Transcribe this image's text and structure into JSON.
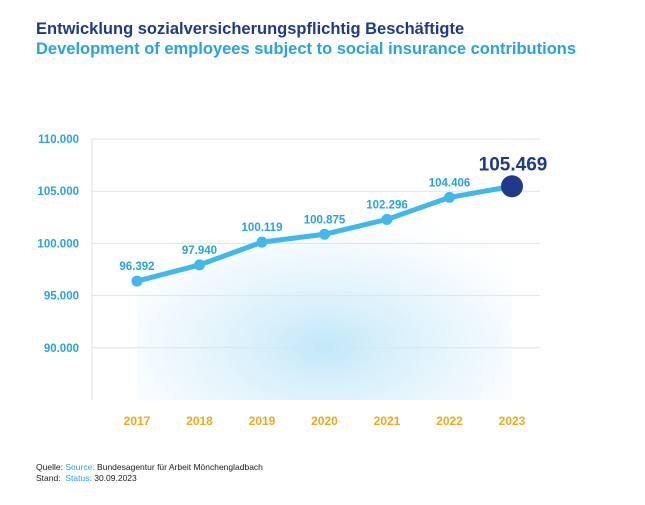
{
  "title": {
    "german": "Entwicklung sozialversicherungspflichtig Beschäftigte",
    "english": "Development of employees subject to social insurance contributions"
  },
  "colors": {
    "title_german": "#1f3a8a",
    "title_english": "#29a3e0",
    "line": "#41b8ea",
    "axis_labels": "#29a3e0",
    "x_labels": "#f0a81c",
    "highlight_point": "#1f3a8a",
    "grid": "#e2e2e2"
  },
  "chart_data": {
    "type": "line",
    "title": "Entwicklung sozialversicherungspflichtig Beschäftigte",
    "subtitle": "Development of employees subject to social insurance contributions",
    "x": [
      "2017",
      "2018",
      "2019",
      "2020",
      "2021",
      "2022",
      "2023"
    ],
    "series": [
      {
        "values": [
          96392,
          97940,
          100119,
          100875,
          102296,
          104406,
          105469
        ],
        "labels": [
          "96.392",
          "97.940",
          "100.119",
          "100.875",
          "102.296",
          "104.406",
          "105.469"
        ]
      }
    ],
    "y_ticks": [
      90000,
      95000,
      100000,
      105000,
      110000
    ],
    "y_tick_labels": [
      "90.000",
      "95.000",
      "100.000",
      "105.000",
      "110.000"
    ],
    "ylim": [
      85000,
      110000
    ],
    "grid": true,
    "highlight": "last point (2023)"
  },
  "footer": {
    "source_key_de": "Quelle:",
    "source_key_en": "Source:",
    "source_value": "Bundesagentur für Arbeit Mönchengladbach",
    "status_key_de": "Stand:",
    "status_key_en": "Status:",
    "status_value": "30.09.2023"
  }
}
